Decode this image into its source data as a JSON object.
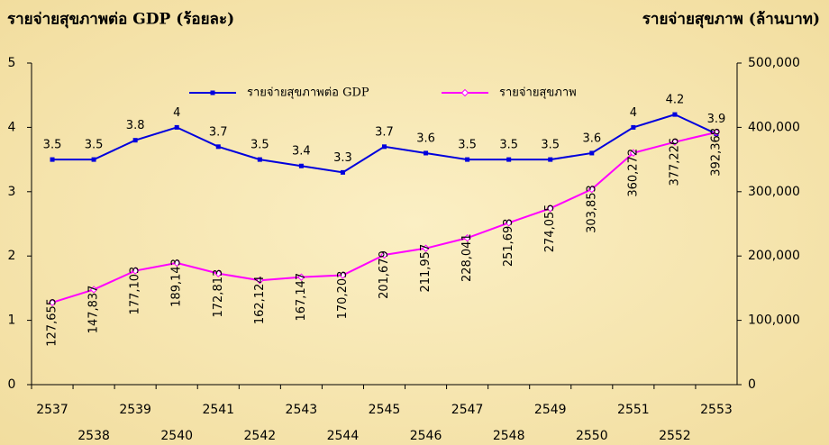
{
  "chart_data": {
    "type": "line",
    "y_axis_title": "รายจ่ายสุขภาพต่อ GDP (ร้อยละ)",
    "y2_axis_title": "รายจ่ายสุขภาพ (ล้านบาท)",
    "categories": [
      "2537",
      "2538",
      "2539",
      "2540",
      "2541",
      "2542",
      "2543",
      "2544",
      "2545",
      "2546",
      "2547",
      "2548",
      "2549",
      "2550",
      "2551",
      "2552",
      "2553"
    ],
    "series": [
      {
        "name": "รายจ่ายสุขภาพต่อ GDP",
        "color": "#0000dd",
        "axis": "y",
        "values": [
          3.5,
          3.5,
          3.8,
          4,
          3.7,
          3.5,
          3.4,
          3.3,
          3.7,
          3.6,
          3.5,
          3.5,
          3.5,
          3.6,
          4,
          4.2,
          3.9
        ]
      },
      {
        "name": "รายจ่ายสุขภาพ",
        "color": "#ff00ff",
        "axis": "y2",
        "values": [
          127655,
          147837,
          177103,
          189143,
          172813,
          162124,
          167147,
          170203,
          201679,
          211957,
          228041,
          251693,
          274055,
          303853,
          360272,
          377226,
          392368
        ],
        "value_labels": [
          "127,655",
          "147,837",
          "177,103",
          "189,143",
          "172,813",
          "162,124",
          "167,147",
          "170,203",
          "201,679",
          "211,957",
          "228,041",
          "251,693",
          "274,055",
          "303,853",
          "360,272",
          "377,226",
          "392,368"
        ]
      }
    ],
    "ylim": [
      0,
      5
    ],
    "yticks": [
      0,
      1,
      2,
      3,
      4,
      5
    ],
    "y2lim": [
      0,
      500000
    ],
    "y2ticks": [
      0,
      {
        "value": 100000,
        "label": "100,000"
      },
      {
        "value": 200000,
        "label": "200,000"
      },
      {
        "value": 300000,
        "label": "300,000"
      },
      {
        "value": 400000,
        "label": "400,000"
      },
      {
        "value": 500000,
        "label": "500,000"
      }
    ]
  }
}
